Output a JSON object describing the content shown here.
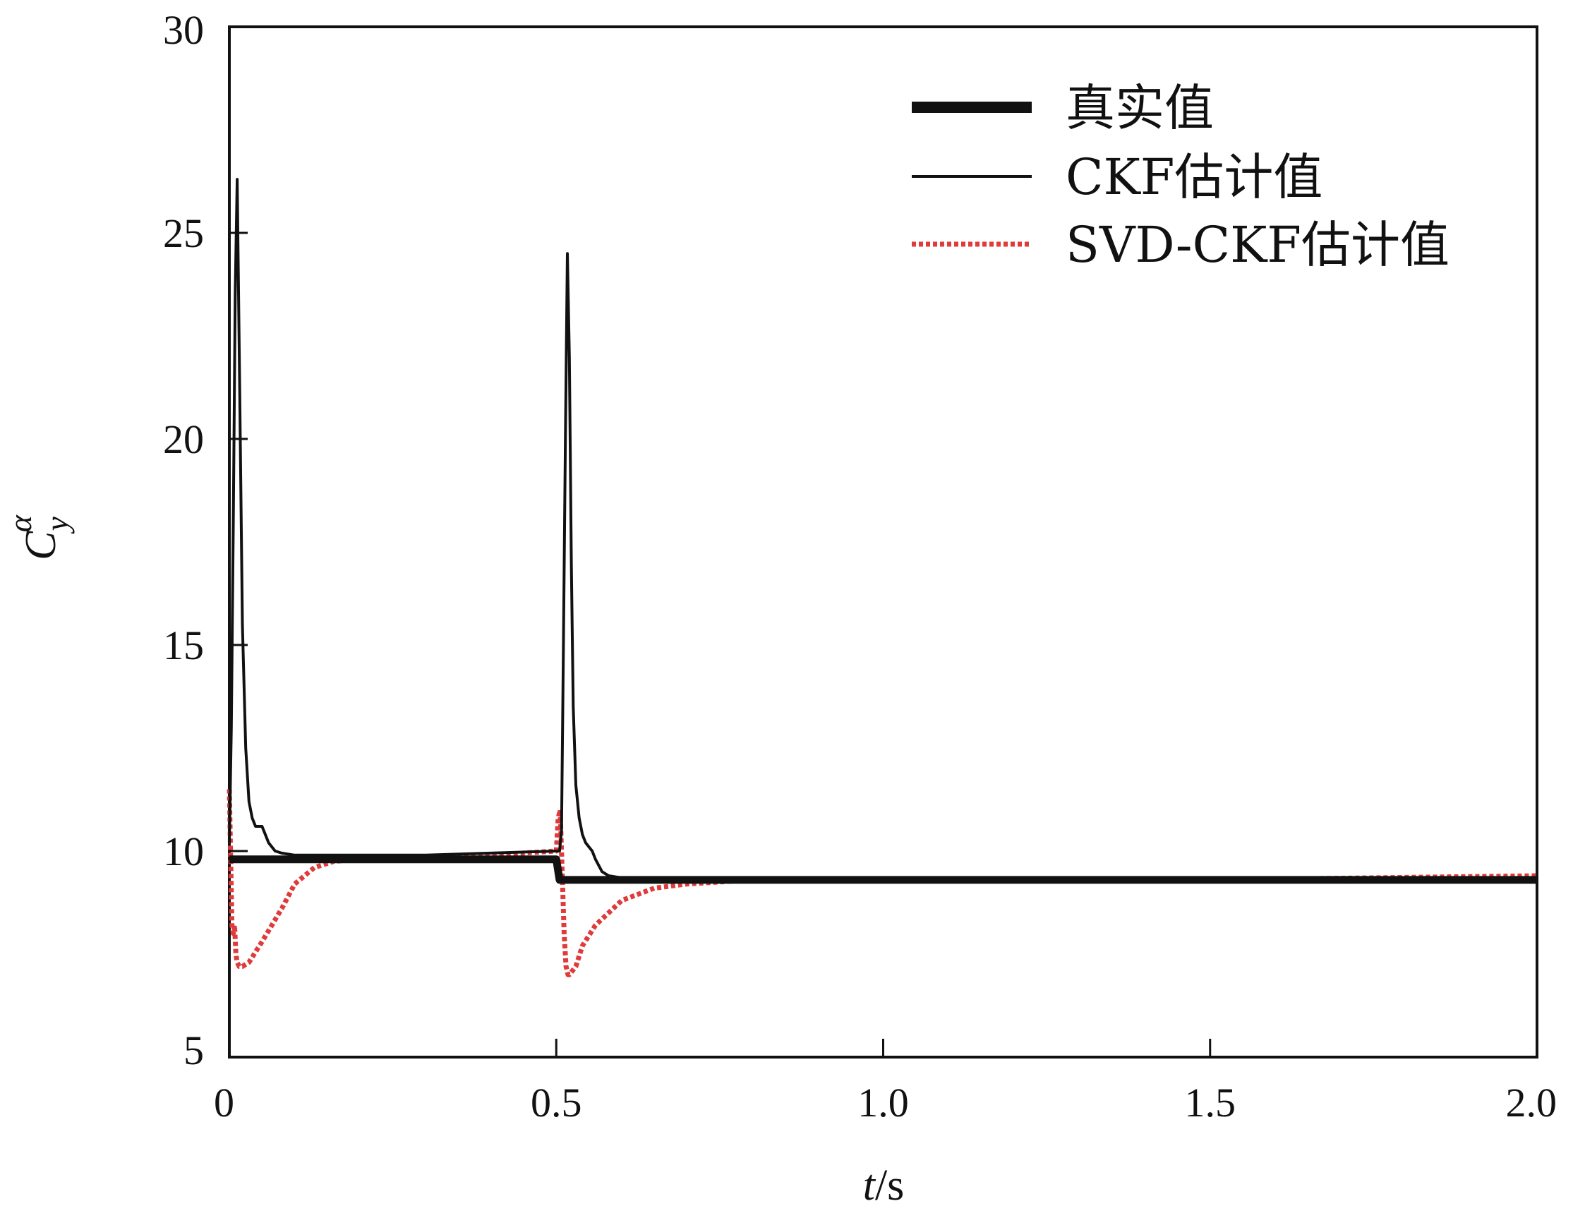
{
  "chart_data": {
    "type": "line",
    "title": "",
    "xlabel": {
      "var": "t",
      "unit": "/s"
    },
    "ylabel": {
      "var": "C",
      "sub": "y",
      "sup": "α"
    },
    "xlim": [
      0,
      2.0
    ],
    "ylim": [
      5,
      30
    ],
    "xticks": [
      {
        "value": 0,
        "label": "0"
      },
      {
        "value": 0.5,
        "label": "0.5"
      },
      {
        "value": 1.0,
        "label": "1.0"
      },
      {
        "value": 1.5,
        "label": "1.5"
      },
      {
        "value": 2.0,
        "label": "2.0"
      }
    ],
    "yticks": [
      {
        "value": 5,
        "label": "5"
      },
      {
        "value": 10,
        "label": "10"
      },
      {
        "value": 15,
        "label": "15"
      },
      {
        "value": 20,
        "label": "20"
      },
      {
        "value": 25,
        "label": "25"
      },
      {
        "value": 30,
        "label": "30"
      }
    ],
    "grid": false,
    "legend_position": "top-right",
    "series": [
      {
        "name": "真实值",
        "color": "#111111",
        "style": "thick-solid",
        "x": [
          0,
          0.495,
          0.5,
          0.505,
          0.515,
          1.0,
          1.5,
          2.0
        ],
        "y": [
          9.8,
          9.8,
          9.8,
          9.3,
          9.3,
          9.3,
          9.3,
          9.3
        ]
      },
      {
        "name": "CKF估计值",
        "color": "#111111",
        "style": "thin-solid",
        "x": [
          0,
          0.003,
          0.006,
          0.009,
          0.012,
          0.016,
          0.02,
          0.025,
          0.03,
          0.035,
          0.04,
          0.045,
          0.05,
          0.055,
          0.06,
          0.07,
          0.08,
          0.1,
          0.15,
          0.2,
          0.3,
          0.4,
          0.5,
          0.505,
          0.508,
          0.511,
          0.514,
          0.517,
          0.52,
          0.523,
          0.526,
          0.53,
          0.535,
          0.54,
          0.545,
          0.55,
          0.555,
          0.56,
          0.57,
          0.58,
          0.6,
          0.65,
          0.7,
          1.0,
          1.5,
          2.0
        ],
        "y": [
          10.2,
          13.0,
          18.0,
          23.5,
          26.3,
          21.0,
          15.5,
          12.5,
          11.2,
          10.8,
          10.6,
          10.6,
          10.6,
          10.4,
          10.2,
          10.0,
          9.95,
          9.9,
          9.9,
          9.9,
          9.9,
          9.95,
          10.0,
          10.0,
          10.5,
          15.0,
          20.0,
          24.5,
          22.0,
          17.0,
          13.5,
          11.6,
          10.8,
          10.4,
          10.2,
          10.1,
          10.0,
          9.8,
          9.5,
          9.4,
          9.35,
          9.3,
          9.3,
          9.3,
          9.3,
          9.35
        ]
      },
      {
        "name": "SVD-CKF估计值",
        "color": "#e03a3a",
        "style": "dotted",
        "x": [
          0,
          0.002,
          0.004,
          0.006,
          0.008,
          0.01,
          0.012,
          0.015,
          0.02,
          0.03,
          0.05,
          0.08,
          0.1,
          0.13,
          0.16,
          0.2,
          0.25,
          0.3,
          0.4,
          0.5,
          0.503,
          0.506,
          0.509,
          0.512,
          0.515,
          0.518,
          0.52,
          0.525,
          0.53,
          0.54,
          0.56,
          0.6,
          0.65,
          0.7,
          0.8,
          1.0,
          1.5,
          2.0
        ],
        "y": [
          11.5,
          9.8,
          8.2,
          8.0,
          8.2,
          7.5,
          7.3,
          7.2,
          7.2,
          7.3,
          7.8,
          8.6,
          9.2,
          9.6,
          9.75,
          9.8,
          9.8,
          9.85,
          9.9,
          10.0,
          10.8,
          11.0,
          9.5,
          8.0,
          7.2,
          7.0,
          7.0,
          7.1,
          7.2,
          7.7,
          8.2,
          8.8,
          9.1,
          9.2,
          9.3,
          9.3,
          9.3,
          9.4
        ]
      }
    ]
  }
}
